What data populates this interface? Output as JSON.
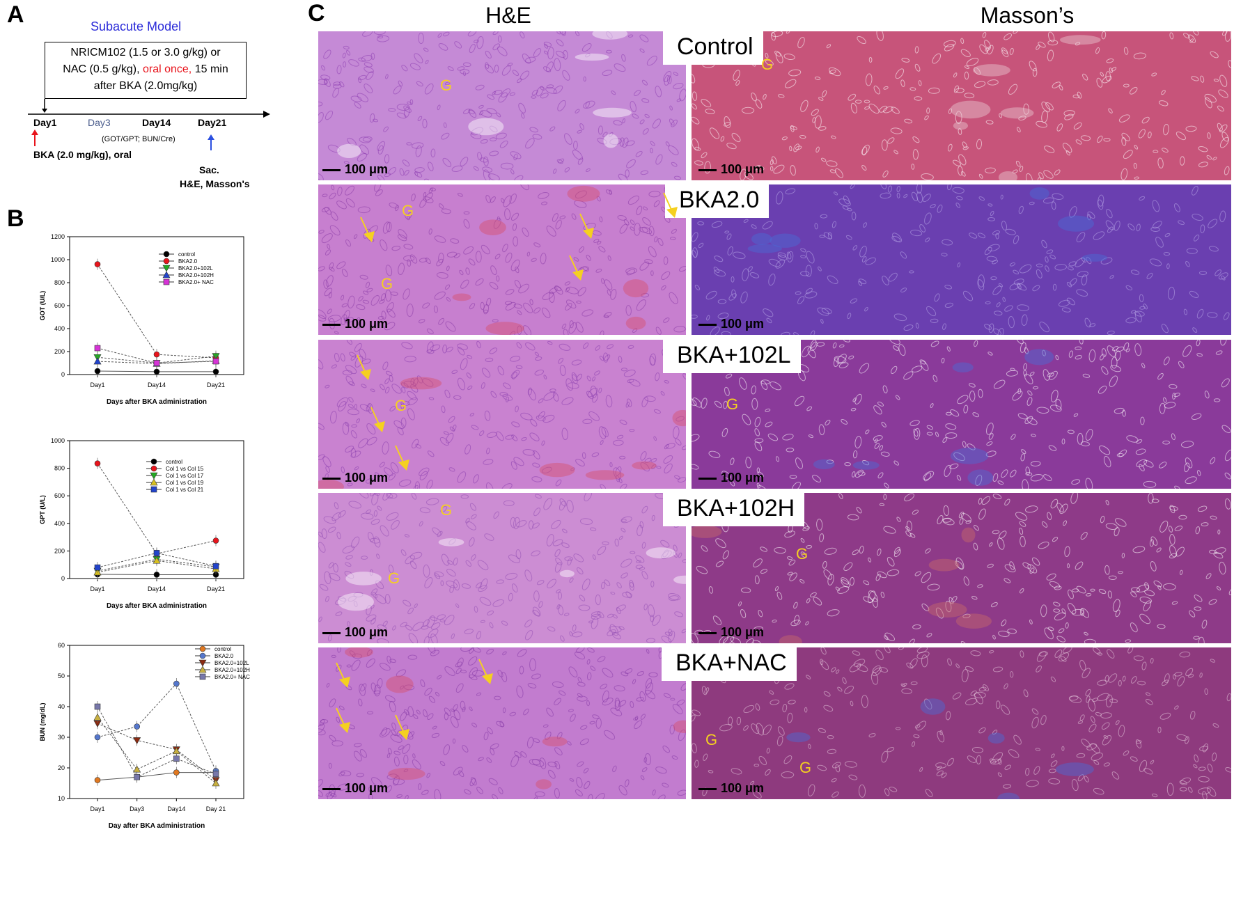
{
  "panel_a": {
    "letter": "A",
    "title": "Subacute Model",
    "protocol_line1": "NRICM102 (1.5 or 3.0 g/kg) or",
    "protocol_line2a": "NAC (0.5 g/kg), ",
    "protocol_line2b": "oral once,",
    "protocol_line2c": " 15 min",
    "protocol_line3": "after BKA (2.0mg/kg)",
    "days": [
      "Day1",
      "Day3",
      "Day14",
      "Day21"
    ],
    "tests": "(GOT/GPT; BUN/Cre)",
    "bka_dose": "BKA (2.0 mg/kg), oral",
    "sac_line1": "Sac.",
    "sac_line2": "H&E, Masson's",
    "colors": {
      "title": "#2a2ad8",
      "red": "#e8141c",
      "blue": "#2b4fe0",
      "day3": "#4a5c8c"
    }
  },
  "panel_b": {
    "letter": "B"
  },
  "chart_data": [
    {
      "type": "line",
      "x": [
        "Day1",
        "Day14",
        "Day21"
      ],
      "xlabel": "Days after BKA administration",
      "ylabel": "GOT (U/L)",
      "ylim": [
        0,
        1200
      ],
      "yticks": [
        0,
        200,
        400,
        600,
        800,
        1000,
        1200
      ],
      "series": [
        {
          "name": "control",
          "values": [
            30,
            25,
            25
          ],
          "color": "#000000",
          "marker": "circle"
        },
        {
          "name": "BKA2.0",
          "values": [
            960,
            175,
            145
          ],
          "color": "#e8141c",
          "marker": "circle"
        },
        {
          "name": "BKA2.0+102L",
          "values": [
            150,
            100,
            160
          ],
          "color": "#22aa22",
          "marker": "tri-down"
        },
        {
          "name": "BKA2.0+102H",
          "values": [
            115,
            95,
            120
          ],
          "color": "#2244cc",
          "marker": "tri-up"
        },
        {
          "name": "BKA2.0+ NAC",
          "values": [
            230,
            100,
            115
          ],
          "color": "#d633d6",
          "marker": "square"
        }
      ]
    },
    {
      "type": "line",
      "x": [
        "Day1",
        "Day14",
        "Day21"
      ],
      "xlabel": "Days after BKA administration",
      "ylabel": "GPT (U/L)",
      "ylim": [
        0,
        1000
      ],
      "yticks": [
        0,
        200,
        400,
        600,
        800,
        1000
      ],
      "series": [
        {
          "name": "control",
          "values": [
            30,
            28,
            28
          ],
          "color": "#000000",
          "marker": "circle"
        },
        {
          "name": "Col 1 vs Col 15",
          "values": [
            835,
            180,
            275
          ],
          "color": "#e8141c",
          "marker": "circle"
        },
        {
          "name": "Col 1 vs Col 17",
          "values": [
            55,
            140,
            85
          ],
          "color": "#22aa22",
          "marker": "tri-down"
        },
        {
          "name": "Col 1 vs Col 19",
          "values": [
            45,
            130,
            70
          ],
          "color": "#d8c020",
          "marker": "tri-up"
        },
        {
          "name": "Col 1 vs Col 21",
          "values": [
            80,
            185,
            90
          ],
          "color": "#2244cc",
          "marker": "square"
        }
      ]
    },
    {
      "type": "line",
      "x": [
        "Day1",
        "Day3",
        "Day14",
        "Day 21"
      ],
      "xlabel": "Day after BKA administration",
      "ylabel": "BUN (mg/dL)",
      "ylim": [
        10,
        60
      ],
      "yticks": [
        10,
        20,
        30,
        40,
        50,
        60
      ],
      "series": [
        {
          "name": "control",
          "values": [
            16,
            17,
            18.5,
            18.5
          ],
          "color": "#e07820",
          "marker": "circle"
        },
        {
          "name": "BKA2.0",
          "values": [
            30,
            33.5,
            47.5,
            19
          ],
          "color": "#5577cc",
          "marker": "circle"
        },
        {
          "name": "BKA2.0+102L",
          "values": [
            34.5,
            29,
            26,
            16
          ],
          "color": "#8b2a10",
          "marker": "tri-down"
        },
        {
          "name": "BKA2.0+102H",
          "values": [
            36.5,
            19.5,
            25.5,
            15
          ],
          "color": "#c8b040",
          "marker": "tri-up"
        },
        {
          "name": "BKA2.0+ NAC",
          "values": [
            40,
            17,
            23,
            18
          ],
          "color": "#7777aa",
          "marker": "square"
        }
      ]
    }
  ],
  "panel_c": {
    "letter": "C",
    "col_he": "H&E",
    "col_masson": "Masson’s",
    "scale": "100 μm",
    "g": "G",
    "groups": [
      "Control",
      "BKA2.0",
      "BKA+102L",
      "BKA+102H",
      "BKA+NAC"
    ]
  }
}
